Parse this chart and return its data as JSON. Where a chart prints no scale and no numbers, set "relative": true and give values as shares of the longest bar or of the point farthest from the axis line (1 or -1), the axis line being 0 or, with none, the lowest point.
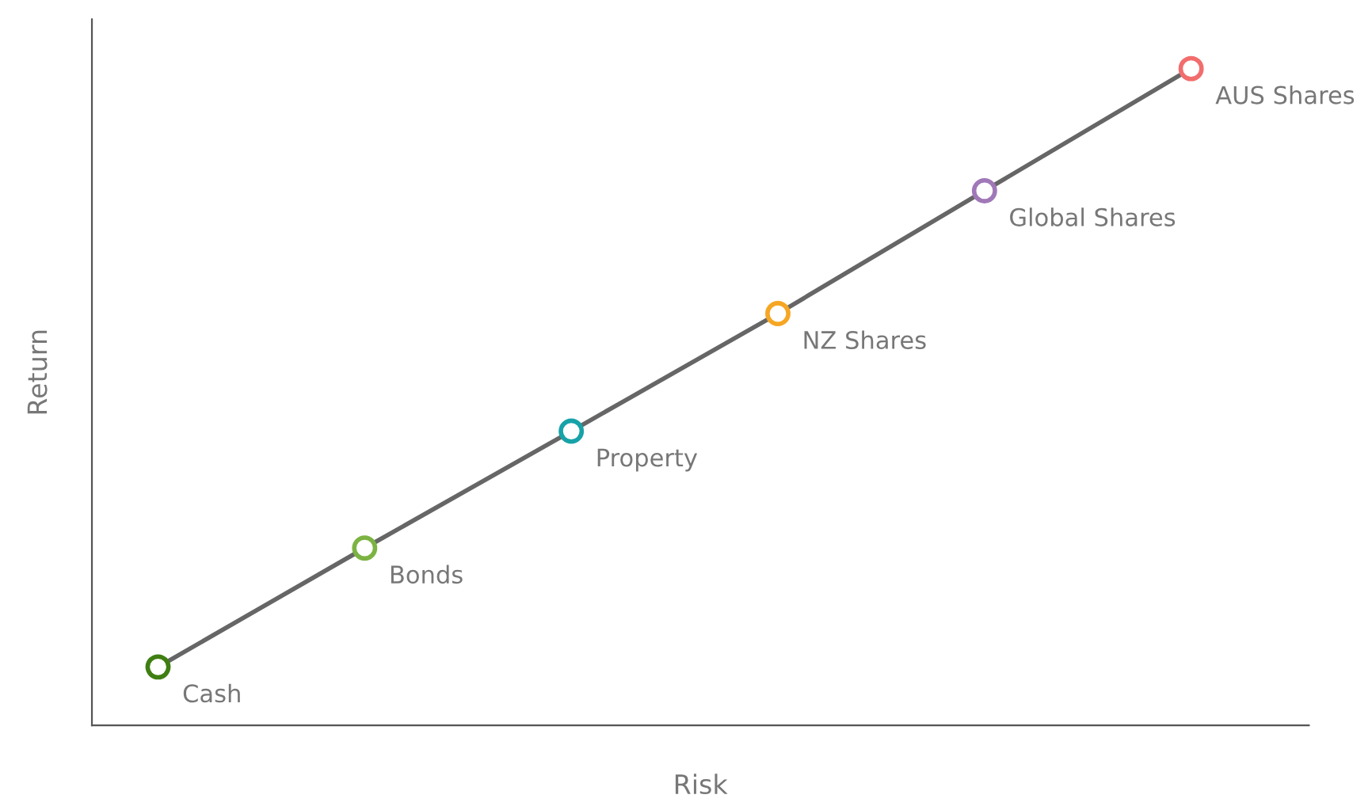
{
  "chart_data": {
    "type": "line",
    "xlabel": "Risk",
    "ylabel": "Return",
    "relative": true,
    "tick_labels": false,
    "grid": false,
    "legend": false,
    "marker": "circle",
    "categories": [
      null,
      null,
      null,
      null,
      null,
      null
    ],
    "series": [
      {
        "color": "#666666",
        "colors": [
          "#3f7f12",
          "#7cb342",
          "#17a2a8",
          "#f5a623",
          "#a078b8",
          "#f26d6d"
        ],
        "values": [
          0.089,
          0.27,
          0.448,
          0.627,
          0.814,
          1
        ]
      }
    ],
    "annotations": [
      "Cash",
      "Bonds",
      "Property",
      "NZ Shares",
      "Global Shares",
      "AUS Shares"
    ]
  }
}
